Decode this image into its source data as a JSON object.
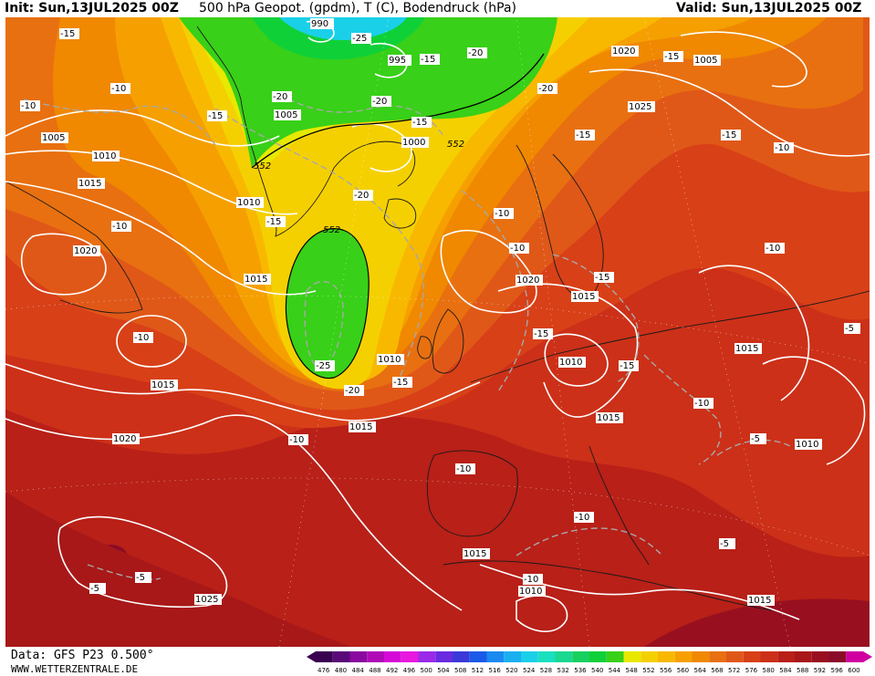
{
  "header": {
    "init": "Init: Sun,13JUL2025 00Z",
    "title": "500 hPa Geopot. (gpdm), T (C), Bodendruck (hPa)",
    "valid": "Valid: Sun,13JUL2025 00Z"
  },
  "footer": {
    "data_source": "Data: GFS P23 0.500°",
    "website": "WWW.WETTERZENTRALE.DE"
  },
  "legend": {
    "ticks": [
      "476",
      "480",
      "484",
      "488",
      "492",
      "496",
      "500",
      "504",
      "508",
      "512",
      "516",
      "520",
      "524",
      "528",
      "532",
      "536",
      "540",
      "544",
      "548",
      "552",
      "556",
      "560",
      "564",
      "568",
      "572",
      "576",
      "580",
      "584",
      "588",
      "592",
      "596",
      "600"
    ],
    "colors": [
      "#3a0050",
      "#5a0a78",
      "#8a0aa0",
      "#b00ab8",
      "#d60ad8",
      "#e818e0",
      "#9a2ae8",
      "#6a2ae0",
      "#3a3ad8",
      "#1a5ae8",
      "#1a8af0",
      "#1ab0f0",
      "#1ad0e8",
      "#1ae0c0",
      "#1ad890",
      "#18d060",
      "#10d038",
      "#38d018",
      "#e8e800",
      "#f5d000",
      "#f8b800",
      "#f5a000",
      "#f08800",
      "#e87010",
      "#e05818",
      "#d84018",
      "#cc3018",
      "#b82018",
      "#a81818",
      "#981020",
      "#8a0c28",
      "#d000a0"
    ]
  },
  "isobar_labels": [
    {
      "id": "990",
      "text": "990"
    },
    {
      "id": "995",
      "text": "995"
    },
    {
      "id": "1000",
      "text": "1000"
    },
    {
      "id": "1005",
      "text": "1005"
    },
    {
      "id": "1010",
      "text": "1010"
    },
    {
      "id": "1015",
      "text": "1015"
    },
    {
      "id": "1020",
      "text": "1020"
    },
    {
      "id": "1025",
      "text": "1025"
    }
  ],
  "temperature_labels": [
    "-25",
    "-20",
    "-15",
    "-10",
    "-5"
  ],
  "geopotential_labels": [
    "552"
  ]
}
